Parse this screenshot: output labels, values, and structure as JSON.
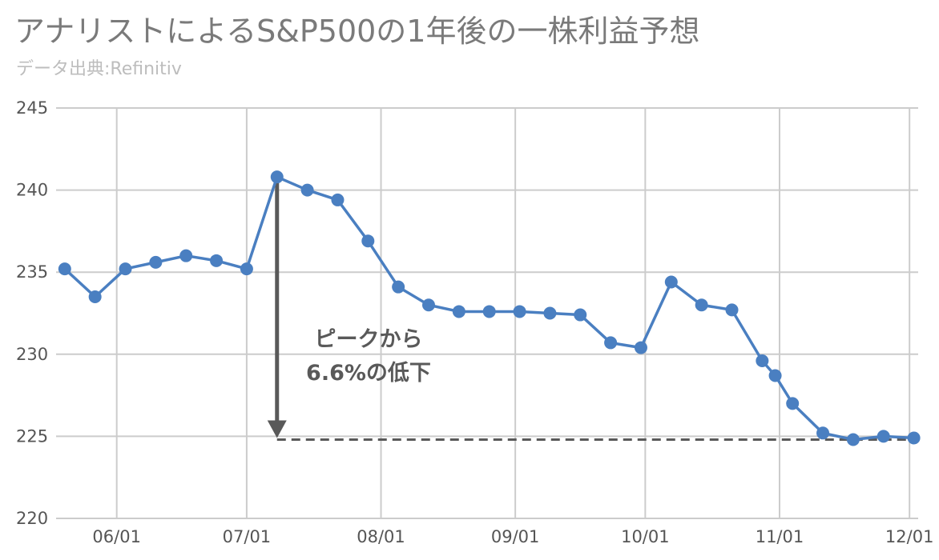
{
  "chart_data": {
    "type": "line",
    "title": "アナリストによるS&P500の1年後の一株利益予想",
    "subtitle": "データ出典:Refinitiv",
    "ylim": [
      220,
      245
    ],
    "y_ticks": [
      "245",
      "240",
      "235",
      "230",
      "225",
      "220"
    ],
    "x_ticks": [
      "06/01",
      "07/01",
      "08/01",
      "09/01",
      "10/01",
      "11/01",
      "12/01"
    ],
    "x_range": [
      "2022-05-18",
      "2022-12-03"
    ],
    "grid": true,
    "legend": "none",
    "series": [
      {
        "color": "#4a7fc1",
        "points": [
          {
            "x": "2022-05-20",
            "y": 235.2
          },
          {
            "x": "2022-05-27",
            "y": 233.5
          },
          {
            "x": "2022-06-03",
            "y": 235.2
          },
          {
            "x": "2022-06-10",
            "y": 235.6
          },
          {
            "x": "2022-06-17",
            "y": 236.0
          },
          {
            "x": "2022-06-24",
            "y": 235.7
          },
          {
            "x": "2022-07-01",
            "y": 235.2
          },
          {
            "x": "2022-07-08",
            "y": 240.8
          },
          {
            "x": "2022-07-15",
            "y": 240.0
          },
          {
            "x": "2022-07-22",
            "y": 239.4
          },
          {
            "x": "2022-07-29",
            "y": 236.9
          },
          {
            "x": "2022-08-05",
            "y": 234.1
          },
          {
            "x": "2022-08-12",
            "y": 233.0
          },
          {
            "x": "2022-08-19",
            "y": 232.6
          },
          {
            "x": "2022-08-26",
            "y": 232.6
          },
          {
            "x": "2022-09-02",
            "y": 232.6
          },
          {
            "x": "2022-09-09",
            "y": 232.5
          },
          {
            "x": "2022-09-16",
            "y": 232.4
          },
          {
            "x": "2022-09-23",
            "y": 230.7
          },
          {
            "x": "2022-09-30",
            "y": 230.4
          },
          {
            "x": "2022-10-07",
            "y": 234.4
          },
          {
            "x": "2022-10-14",
            "y": 233.0
          },
          {
            "x": "2022-10-21",
            "y": 232.7
          },
          {
            "x": "2022-10-28",
            "y": 229.6
          },
          {
            "x": "2022-10-31",
            "y": 228.7
          },
          {
            "x": "2022-11-04",
            "y": 227.0
          },
          {
            "x": "2022-11-11",
            "y": 225.2
          },
          {
            "x": "2022-11-18",
            "y": 224.8
          },
          {
            "x": "2022-11-25",
            "y": 225.0
          },
          {
            "x": "2022-12-02",
            "y": 224.9
          }
        ]
      }
    ],
    "annotation": {
      "lines": [
        "ピークから",
        "6.6%の低下"
      ],
      "arrow_from": {
        "x": "2022-07-08",
        "y": 240.8
      },
      "arrow_to": {
        "x": "2022-07-08",
        "y": 224.8
      },
      "reference_line": {
        "y": 224.8,
        "x_start": "2022-07-08",
        "x_end": "2022-12-02"
      },
      "arrow_color": "#595959"
    },
    "colors": {
      "grid": "#cccccc",
      "line": "#4a7fc1",
      "title": "#7a7a7a",
      "subtitle": "#bdbdbd"
    }
  }
}
